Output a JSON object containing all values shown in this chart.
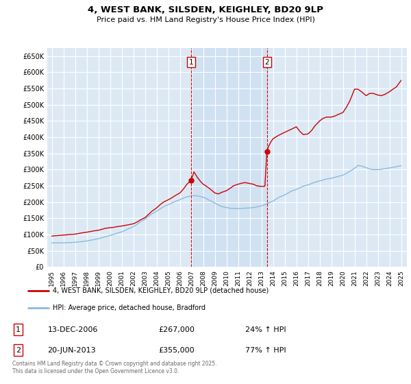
{
  "title": "4, WEST BANK, SILSDEN, KEIGHLEY, BD20 9LP",
  "subtitle": "Price paid vs. HM Land Registry's House Price Index (HPI)",
  "background_color": "#dce9f5",
  "plot_bg_color": "#dce9f5",
  "shade_between_color": "#c8ddf0",
  "ylim": [
    0,
    675000
  ],
  "yticks": [
    0,
    50000,
    100000,
    150000,
    200000,
    250000,
    300000,
    350000,
    400000,
    450000,
    500000,
    550000,
    600000,
    650000
  ],
  "ytick_labels": [
    "£0",
    "£50K",
    "£100K",
    "£150K",
    "£200K",
    "£250K",
    "£300K",
    "£350K",
    "£400K",
    "£450K",
    "£500K",
    "£550K",
    "£600K",
    "£650K"
  ],
  "xlim_start": 1994.6,
  "xlim_end": 2025.5,
  "xticks": [
    1995,
    1996,
    1997,
    1998,
    1999,
    2000,
    2001,
    2002,
    2003,
    2004,
    2005,
    2006,
    2007,
    2008,
    2009,
    2010,
    2011,
    2012,
    2013,
    2014,
    2015,
    2016,
    2017,
    2018,
    2019,
    2020,
    2021,
    2022,
    2023,
    2024,
    2025
  ],
  "red_line_color": "#cc0000",
  "blue_line_color": "#88bbdd",
  "vline_color": "#cc0000",
  "marker1_x": 2006.96,
  "marker2_x": 2013.47,
  "marker_y_top": 640000,
  "sale1_marker_y": 267000,
  "sale2_marker_y": 355000,
  "legend_label_red": "4, WEST BANK, SILSDEN, KEIGHLEY, BD20 9LP (detached house)",
  "legend_label_blue": "HPI: Average price, detached house, Bradford",
  "annotation1_label": "1",
  "annotation2_label": "2",
  "sale1_date": "13-DEC-2006",
  "sale1_price": "£267,000",
  "sale1_hpi": "24% ↑ HPI",
  "sale2_date": "20-JUN-2013",
  "sale2_price": "£355,000",
  "sale2_hpi": "77% ↑ HPI",
  "footer": "Contains HM Land Registry data © Crown copyright and database right 2025.\nThis data is licensed under the Open Government Licence v3.0.",
  "red_data_x": [
    1995.0,
    1995.3,
    1995.6,
    1996.0,
    1996.3,
    1996.6,
    1997.0,
    1997.3,
    1997.6,
    1998.0,
    1998.3,
    1998.6,
    1999.0,
    1999.3,
    1999.6,
    2000.0,
    2000.3,
    2000.6,
    2001.0,
    2001.3,
    2001.6,
    2002.0,
    2002.3,
    2002.6,
    2003.0,
    2003.3,
    2003.6,
    2004.0,
    2004.3,
    2004.6,
    2005.0,
    2005.3,
    2005.6,
    2006.0,
    2006.3,
    2006.6,
    2006.96,
    2007.2,
    2007.5,
    2007.8,
    2008.0,
    2008.3,
    2008.6,
    2009.0,
    2009.3,
    2009.6,
    2010.0,
    2010.3,
    2010.6,
    2011.0,
    2011.3,
    2011.6,
    2012.0,
    2012.3,
    2012.6,
    2013.0,
    2013.3,
    2013.47,
    2013.6,
    2013.8,
    2014.0,
    2014.3,
    2014.6,
    2015.0,
    2015.3,
    2015.6,
    2016.0,
    2016.3,
    2016.6,
    2017.0,
    2017.3,
    2017.6,
    2018.0,
    2018.3,
    2018.6,
    2019.0,
    2019.3,
    2019.6,
    2020.0,
    2020.3,
    2020.6,
    2021.0,
    2021.3,
    2021.6,
    2022.0,
    2022.3,
    2022.6,
    2023.0,
    2023.3,
    2023.6,
    2024.0,
    2024.3,
    2024.6,
    2025.0
  ],
  "red_data_y": [
    95000,
    96000,
    97000,
    98000,
    99000,
    100000,
    101000,
    103000,
    105000,
    107000,
    109000,
    111000,
    113000,
    116000,
    119000,
    121000,
    122000,
    124000,
    126000,
    128000,
    130000,
    133000,
    138000,
    145000,
    152000,
    162000,
    172000,
    182000,
    192000,
    200000,
    207000,
    213000,
    220000,
    228000,
    240000,
    255000,
    267000,
    293000,
    276000,
    262000,
    255000,
    248000,
    240000,
    228000,
    225000,
    230000,
    235000,
    242000,
    250000,
    255000,
    258000,
    260000,
    257000,
    255000,
    250000,
    248000,
    249000,
    355000,
    370000,
    385000,
    395000,
    402000,
    408000,
    415000,
    420000,
    425000,
    432000,
    418000,
    408000,
    410000,
    420000,
    435000,
    450000,
    458000,
    462000,
    462000,
    465000,
    470000,
    476000,
    492000,
    512000,
    548000,
    548000,
    540000,
    528000,
    535000,
    535000,
    530000,
    528000,
    532000,
    540000,
    548000,
    555000,
    575000
  ],
  "blue_data_x": [
    1995.0,
    1995.3,
    1995.6,
    1996.0,
    1996.3,
    1996.6,
    1997.0,
    1997.3,
    1997.6,
    1998.0,
    1998.3,
    1998.6,
    1999.0,
    1999.3,
    1999.6,
    2000.0,
    2000.3,
    2000.6,
    2001.0,
    2001.3,
    2001.6,
    2002.0,
    2002.3,
    2002.6,
    2003.0,
    2003.3,
    2003.6,
    2004.0,
    2004.3,
    2004.6,
    2005.0,
    2005.3,
    2005.6,
    2006.0,
    2006.3,
    2006.6,
    2007.0,
    2007.3,
    2007.6,
    2008.0,
    2008.3,
    2008.6,
    2009.0,
    2009.3,
    2009.6,
    2010.0,
    2010.3,
    2010.6,
    2011.0,
    2011.3,
    2011.6,
    2012.0,
    2012.3,
    2012.6,
    2013.0,
    2013.3,
    2013.6,
    2014.0,
    2014.3,
    2014.6,
    2015.0,
    2015.3,
    2015.6,
    2016.0,
    2016.3,
    2016.6,
    2017.0,
    2017.3,
    2017.6,
    2018.0,
    2018.3,
    2018.6,
    2019.0,
    2019.3,
    2019.6,
    2020.0,
    2020.3,
    2020.6,
    2021.0,
    2021.3,
    2021.6,
    2022.0,
    2022.3,
    2022.6,
    2023.0,
    2023.3,
    2023.6,
    2024.0,
    2024.3,
    2024.6,
    2025.0
  ],
  "blue_data_y": [
    74000,
    74000,
    74000,
    74000,
    75000,
    75000,
    76000,
    77000,
    78000,
    80000,
    82000,
    84000,
    87000,
    90000,
    93000,
    97000,
    100000,
    104000,
    108000,
    113000,
    118000,
    124000,
    131000,
    139000,
    147000,
    156000,
    164000,
    172000,
    179000,
    186000,
    192000,
    197000,
    202000,
    207000,
    212000,
    216000,
    219000,
    220000,
    218000,
    215000,
    210000,
    204000,
    197000,
    191000,
    186000,
    183000,
    181000,
    180000,
    180000,
    180000,
    181000,
    182000,
    183000,
    185000,
    188000,
    192000,
    197000,
    203000,
    210000,
    216000,
    222000,
    228000,
    234000,
    239000,
    244000,
    249000,
    253000,
    257000,
    261000,
    265000,
    268000,
    271000,
    273000,
    276000,
    279000,
    283000,
    288000,
    295000,
    304000,
    313000,
    311000,
    306000,
    302000,
    300000,
    300000,
    301000,
    303000,
    305000,
    307000,
    309000,
    312000
  ]
}
